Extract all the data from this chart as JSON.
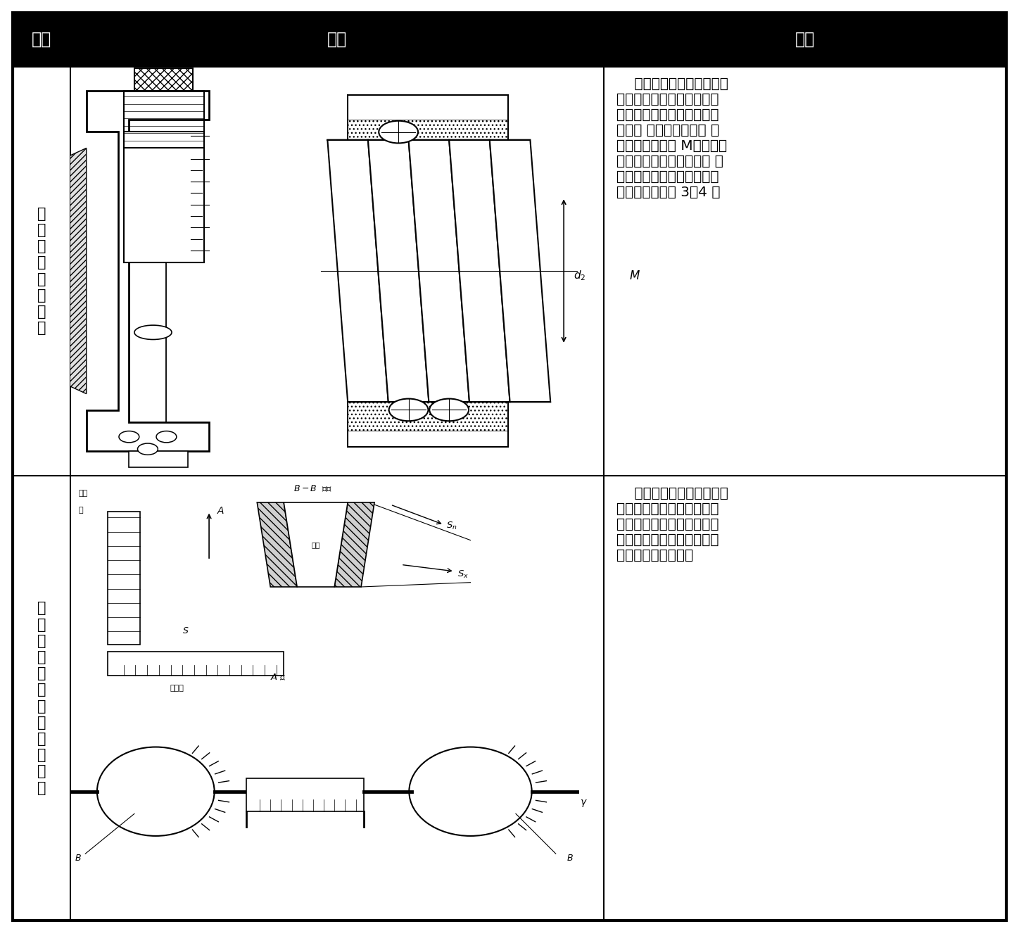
{
  "fig_width": 14.48,
  "fig_height": 13.23,
  "dpi": 100,
  "col1_header": "项目",
  "col2_header": "图示",
  "col3_header": "说明",
  "row1_item": "三\n针\n测\n量\n蜗\n杆\n中\n径",
  "row2_item": "齿\n厚\n游\n标\n卡\n尺\n测\n量\n法\n向\n齿\n厚",
  "row1_desc": "    用三根等直径的量棒，放\n入蜗杆对应槽内，用公法线\n千分尺测量量棒距离，从而\n检验蜗 杆的中径尺寸。 量\n棒尺寸与测量值 M，一般由\n蜗杆图样技术数据确定。 这\n种测量方法的灵敏度要比齿\n厚卡尺测量法高 3～4 倍",
  "row2_desc": "    用齿厚卡尺沿其法向位置\n进行测量，将齿厚卡尺尺身\n与齿向垂直，垂直尺定准分\n度圆法向弦齿高，水平尺测\n出分度圆法向弦齿厚"
}
